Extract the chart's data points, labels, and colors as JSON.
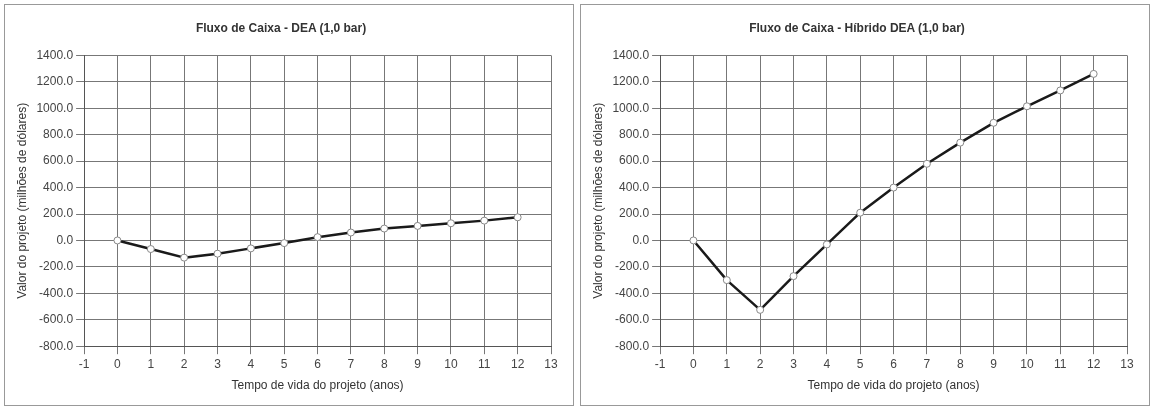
{
  "chart_data": [
    {
      "type": "line",
      "title": "Fluxo de Caixa - DEA (1,0 bar)",
      "xlabel": "Tempo de vida do projeto (anos)",
      "ylabel": "Valor do projeto (milhões de dólares)",
      "x": [
        0,
        1,
        2,
        3,
        4,
        5,
        6,
        7,
        8,
        9,
        10,
        11,
        12
      ],
      "series": [
        {
          "color": "#1a1a1a",
          "values": [
            0,
            -65,
            -130,
            -100,
            -60,
            -20,
            25,
            60,
            90,
            110,
            130,
            150,
            175
          ]
        }
      ],
      "xlim": [
        -1,
        13
      ],
      "xticks": [
        -1,
        0,
        1,
        2,
        3,
        4,
        5,
        6,
        7,
        8,
        9,
        10,
        11,
        12,
        13
      ],
      "ylim": [
        -800,
        1400
      ],
      "yticks": [
        {
          "value": -800,
          "label": "-800.0"
        },
        {
          "value": -600,
          "label": "-600.0"
        },
        {
          "value": -400,
          "label": "-400.0"
        },
        {
          "value": -200,
          "label": "-200.0"
        },
        {
          "value": 0,
          "label": "0.0"
        },
        {
          "value": 200,
          "label": "200.0"
        },
        {
          "value": 400,
          "label": "400.0"
        },
        {
          "value": 600,
          "label": "600.0"
        },
        {
          "value": 800,
          "label": "800.0"
        },
        {
          "value": 1000,
          "label": "1000.0"
        },
        {
          "value": 1200,
          "label": "1200.0"
        },
        {
          "value": 1400,
          "label": "1400.0"
        }
      ],
      "grid": true,
      "legend": false,
      "marker": "circle",
      "line_style": "solid"
    },
    {
      "type": "line",
      "title": "Fluxo de Caixa - Híbrido DEA (1,0 bar)",
      "xlabel": "Tempo de vida do projeto (anos)",
      "ylabel": "Valor do projeto (milhões de dólares)",
      "x": [
        0,
        1,
        2,
        3,
        4,
        5,
        6,
        7,
        8,
        9,
        10,
        11,
        12
      ],
      "series": [
        {
          "color": "#1a1a1a",
          "values": [
            0,
            -300,
            -525,
            -270,
            -30,
            210,
            400,
            580,
            740,
            890,
            1015,
            1135,
            1260
          ]
        }
      ],
      "xlim": [
        -1,
        13
      ],
      "xticks": [
        -1,
        0,
        1,
        2,
        3,
        4,
        5,
        6,
        7,
        8,
        9,
        10,
        11,
        12,
        13
      ],
      "ylim": [
        -800,
        1400
      ],
      "yticks": [
        {
          "value": -800,
          "label": "-800.0"
        },
        {
          "value": -600,
          "label": "-600.0"
        },
        {
          "value": -400,
          "label": "-400.0"
        },
        {
          "value": -200,
          "label": "-200.0"
        },
        {
          "value": 0,
          "label": "0.0"
        },
        {
          "value": 200,
          "label": "200.0"
        },
        {
          "value": 400,
          "label": "400.0"
        },
        {
          "value": 600,
          "label": "600.0"
        },
        {
          "value": 800,
          "label": "800.0"
        },
        {
          "value": 1000,
          "label": "1000.0"
        },
        {
          "value": 1200,
          "label": "1200.0"
        },
        {
          "value": 1400,
          "label": "1400.0"
        }
      ],
      "grid": true,
      "legend": false,
      "marker": "circle",
      "line_style": "solid"
    }
  ]
}
